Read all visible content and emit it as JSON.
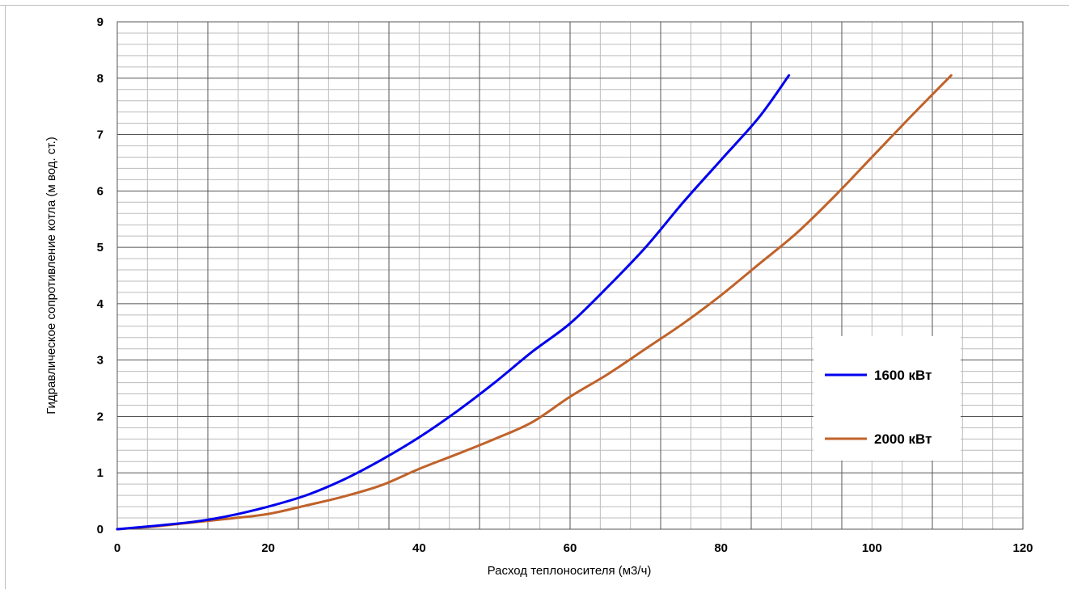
{
  "chart_data": {
    "type": "line",
    "title": "",
    "xlabel": "Расход теплоносителя (м3/ч)",
    "ylabel": "Гидравлическое сопротивление котла (м вод. ст.)",
    "xlim": [
      0,
      120
    ],
    "ylim": [
      0,
      9
    ],
    "x_ticks": [
      "0",
      "20",
      "40",
      "60",
      "80",
      "100",
      "120"
    ],
    "y_ticks": [
      "0",
      "1",
      "2",
      "3",
      "4",
      "5",
      "6",
      "7",
      "8",
      "9"
    ],
    "grid": true,
    "legend_position": "right",
    "series": [
      {
        "name": "1600 кВт",
        "color": "#0000ee",
        "points": [
          [
            0,
            0
          ],
          [
            5,
            0.06
          ],
          [
            10,
            0.13
          ],
          [
            13,
            0.19
          ],
          [
            16,
            0.27
          ],
          [
            20,
            0.4
          ],
          [
            25,
            0.6
          ],
          [
            30,
            0.88
          ],
          [
            35,
            1.23
          ],
          [
            40,
            1.63
          ],
          [
            45,
            2.09
          ],
          [
            50,
            2.6
          ],
          [
            55,
            3.15
          ],
          [
            60,
            3.65
          ],
          [
            65,
            4.3
          ],
          [
            70,
            5.0
          ],
          [
            75,
            5.8
          ],
          [
            80,
            6.55
          ],
          [
            85,
            7.3
          ],
          [
            89,
            8.05
          ]
        ]
      },
      {
        "name": "2000 кВт",
        "color": "#c0622a",
        "points": [
          [
            0,
            0
          ],
          [
            5,
            0.05
          ],
          [
            10,
            0.12
          ],
          [
            15,
            0.19
          ],
          [
            20,
            0.27
          ],
          [
            25,
            0.42
          ],
          [
            30,
            0.58
          ],
          [
            35,
            0.78
          ],
          [
            40,
            1.07
          ],
          [
            45,
            1.33
          ],
          [
            50,
            1.6
          ],
          [
            55,
            1.9
          ],
          [
            60,
            2.35
          ],
          [
            65,
            2.75
          ],
          [
            70,
            3.2
          ],
          [
            75,
            3.65
          ],
          [
            80,
            4.15
          ],
          [
            85,
            4.7
          ],
          [
            90,
            5.25
          ],
          [
            95,
            5.9
          ],
          [
            100,
            6.6
          ],
          [
            105,
            7.3
          ],
          [
            110.5,
            8.05
          ]
        ]
      }
    ]
  }
}
